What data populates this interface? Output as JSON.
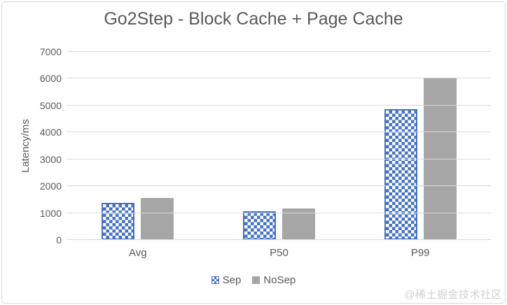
{
  "chart_data": {
    "type": "bar",
    "title": "Go2Step - Block Cache + Page Cache",
    "ylabel": "Latency/ms",
    "xlabel": "",
    "categories": [
      "Avg",
      "P50",
      "P99"
    ],
    "series": [
      {
        "name": "Sep",
        "values": [
          1370,
          1070,
          4870
        ],
        "style": "checker",
        "color": "#4472C4"
      },
      {
        "name": "NoSep",
        "values": [
          1550,
          1180,
          6050
        ],
        "style": "solid",
        "color": "#A6A6A6"
      }
    ],
    "ylim": [
      0,
      7000
    ],
    "yticks": [
      0,
      1000,
      2000,
      3000,
      4000,
      5000,
      6000,
      7000
    ],
    "grid": true,
    "legend_position": "bottom"
  },
  "watermark": "@稀土掘金技术社区",
  "colors": {
    "sep_blue": "#4472C4",
    "nosep_gray": "#A6A6A6",
    "gridline": "#D9D9D9",
    "text": "#595959",
    "watermark": "#D2D2D2",
    "frame_border": "#D9D9D9"
  }
}
